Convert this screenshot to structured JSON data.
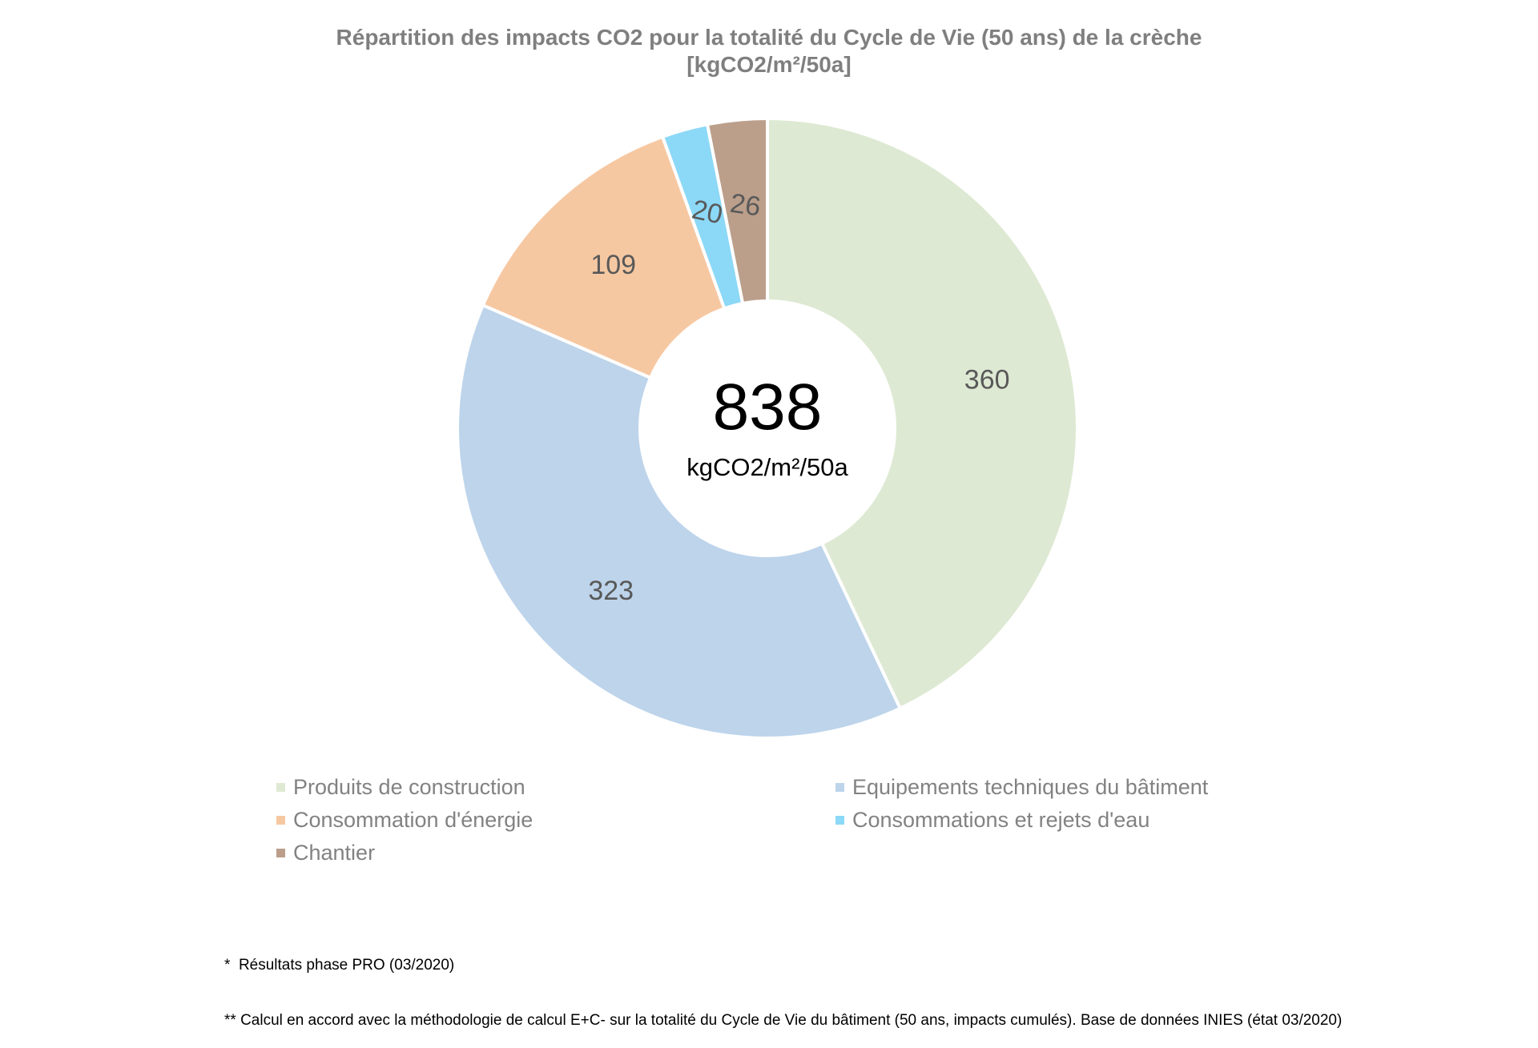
{
  "title": {
    "line1": "Répartition des impacts CO2 pour la totalité du Cycle de Vie (50 ans) de la crèche",
    "line2": "[kgCO2/m²/50a]"
  },
  "chart_data": {
    "type": "pie",
    "subtype": "donut",
    "title": "Répartition des impacts CO2 pour la totalité du Cycle de Vie (50 ans) de la crèche",
    "subtitle": "[kgCO2/m²/50a]",
    "categories": [
      "Produits de construction",
      "Equipements techniques du bâtiment",
      "Consommation d'énergie",
      "Consommations et rejets d'eau",
      "Chantier"
    ],
    "values": [
      360,
      323,
      109,
      20,
      26
    ],
    "colors": [
      "#dee9d3",
      "#bdd4eb",
      "#f6c8a2",
      "#8cd8f7",
      "#bb9f8b"
    ],
    "slice_label_color": "#595959",
    "slice_label_font_size": 34,
    "slice_label_rotations_deg": [
      0,
      0,
      0,
      12,
      8
    ],
    "slice_border_color": "#ffffff",
    "center_total": "838",
    "center_unit": "kgCO2/m²/50a",
    "total": 838,
    "start_angle_deg": 0,
    "direction": "clockwise",
    "donut_hole_ratio": 0.41,
    "legend_position": "bottom"
  },
  "legend": {
    "text_color": "#828282",
    "columns": [
      {
        "items": [
          {
            "label": "Produits de construction",
            "color": "#dee9d3"
          },
          {
            "label": "Consommation d'énergie",
            "color": "#f6c8a2"
          },
          {
            "label": "Chantier",
            "color": "#bb9f8b"
          }
        ]
      },
      {
        "items": [
          {
            "label": "Equipements techniques du bâtiment",
            "color": "#bdd4eb"
          },
          {
            "label": "Consommations et rejets d'eau",
            "color": "#8cd8f7"
          }
        ]
      }
    ]
  },
  "footnotes": {
    "line1": "*  Résultats phase PRO (03/2020)",
    "line2": "** Calcul en accord avec la méthodologie de calcul E+C- sur la totalité du Cycle de Vie du bâtiment (50 ans, impacts cumulés). Base de données INIES (état 03/2020)"
  }
}
